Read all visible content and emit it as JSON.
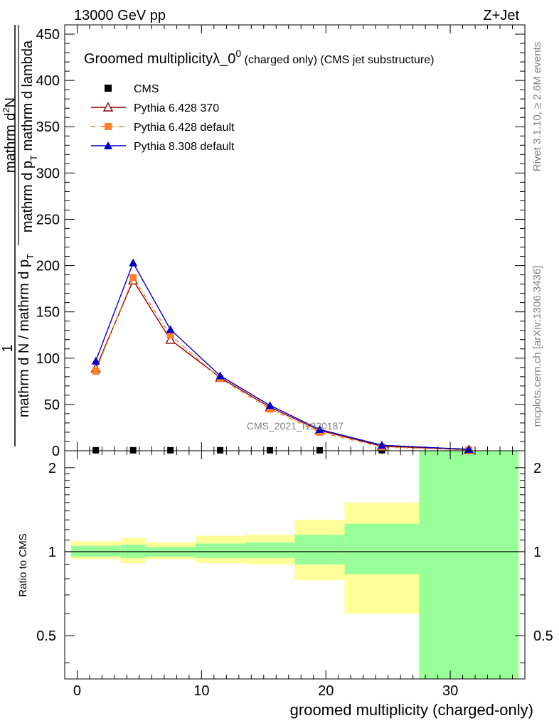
{
  "header": {
    "energy": "13000 GeV pp",
    "process": "Z+Jet",
    "plot_title": "Groomed multiplicityλ_0",
    "plot_title_sup": "0",
    "plot_title_suffix": " (charged only) (CMS jet substructure)",
    "watermark": "CMS_2021_I1920187"
  },
  "side": {
    "rivet": "Rivet 3.1.10, ≥ 2.6M events",
    "mcplots": "mcplots.cern.ch [arXiv:1306.3436]"
  },
  "y_axis_main_label": {
    "one": "1",
    "denominator": "mathrm d N / mathrm d p",
    "denominator_sub": "T",
    "numerator_part1": "mathrm d",
    "numerator_sup": "2",
    "numerator_part2": "N",
    "denominator2": "mathrm d p",
    "denominator2_sub": "T",
    "denominator2_rest": " mathrm d lambda"
  },
  "ratio_ylabel": "Ratio to CMS",
  "xlabel": "groomed multiplicity (charged-only)",
  "colors": {
    "cms": "#000000",
    "p6_370": "#8b0000",
    "p6_default": "#ff7f2a",
    "p8_default": "#0000cc",
    "band_inner": "#99ff99",
    "band_outer": "#ffff99"
  },
  "chart_data": [
    {
      "type": "line",
      "panel": "main",
      "xlim": [
        -1,
        36
      ],
      "ylim": [
        0,
        460
      ],
      "x_ticks": [
        0,
        10,
        20,
        30
      ],
      "y_ticks": [
        0,
        50,
        100,
        150,
        200,
        250,
        300,
        350,
        400,
        450
      ],
      "legend_position": "top-left",
      "x": [
        1.5,
        4.5,
        7.5,
        11.5,
        15.5,
        19.5,
        24.5,
        31.5
      ],
      "series": [
        {
          "name": "CMS",
          "marker": "square",
          "values": [
            0.5,
            0.5,
            0.5,
            0.5,
            0.5,
            0.5,
            0.5,
            0.5
          ]
        },
        {
          "name": "Pythia 6.428 370",
          "marker": "open-triangle",
          "line": "solid",
          "values": [
            89,
            184,
            120,
            79,
            47,
            22,
            5,
            1
          ]
        },
        {
          "name": "Pythia 6.428 default",
          "marker": "square",
          "line": "dashdot",
          "values": [
            86,
            187,
            125,
            78,
            45,
            20,
            4,
            1
          ]
        },
        {
          "name": "Pythia 8.308 default",
          "marker": "filled-triangle",
          "line": "solid",
          "values": [
            97,
            203,
            131,
            81,
            49,
            23,
            6,
            1.5
          ]
        }
      ]
    },
    {
      "type": "area",
      "panel": "ratio",
      "ylabel": "Ratio to CMS",
      "ylim": [
        0.35,
        2.3
      ],
      "y_ticks": [
        0.5,
        1,
        2
      ],
      "y_tick_labels": [
        "0.5",
        "1",
        "2"
      ],
      "bins": [
        {
          "x_low": -0.5,
          "x_high": 3.5,
          "inner": [
            0.96,
            1.05
          ],
          "outer": [
            0.94,
            1.09
          ]
        },
        {
          "x_low": 3.5,
          "x_high": 5.5,
          "inner": [
            0.95,
            1.06
          ],
          "outer": [
            0.91,
            1.12
          ]
        },
        {
          "x_low": 5.5,
          "x_high": 9.5,
          "inner": [
            0.96,
            1.04
          ],
          "outer": [
            0.94,
            1.08
          ]
        },
        {
          "x_low": 9.5,
          "x_high": 13.5,
          "inner": [
            0.95,
            1.07
          ],
          "outer": [
            0.91,
            1.14
          ]
        },
        {
          "x_low": 13.5,
          "x_high": 17.5,
          "inner": [
            0.95,
            1.08
          ],
          "outer": [
            0.9,
            1.15
          ]
        },
        {
          "x_low": 17.5,
          "x_high": 21.5,
          "inner": [
            0.9,
            1.15
          ],
          "outer": [
            0.79,
            1.3
          ]
        },
        {
          "x_low": 21.5,
          "x_high": 27.5,
          "inner": [
            0.83,
            1.26
          ],
          "outer": [
            0.6,
            1.5
          ]
        },
        {
          "x_low": 27.5,
          "x_high": 35.5,
          "inner": [
            0.35,
            2.3
          ],
          "outer": [
            0.35,
            2.3
          ]
        }
      ]
    }
  ]
}
